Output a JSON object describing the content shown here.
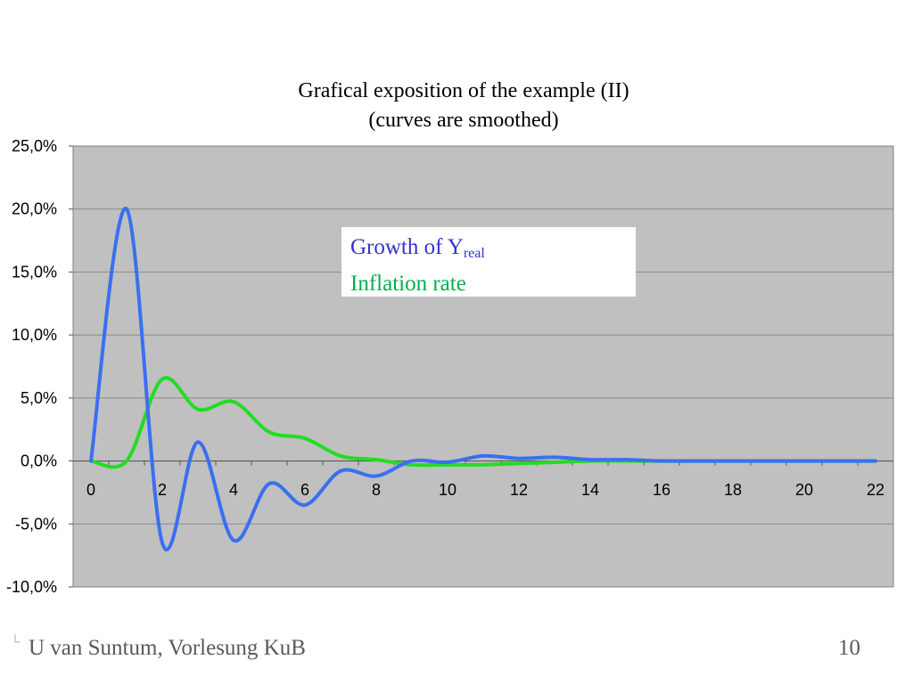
{
  "slide": {
    "footer_mark": "└",
    "footer": "U van Suntum, Vorlesung KuB",
    "page_number": "10"
  },
  "chart_data": {
    "type": "line",
    "title_line1": "Grafical exposition of the example (II)",
    "title_line2": "(curves are smoothed)",
    "xlabel": "",
    "ylabel": "",
    "xlim": [
      0,
      22
    ],
    "ylim": [
      -10,
      25
    ],
    "x_ticks": [
      "0",
      "2",
      "4",
      "6",
      "8",
      "10",
      "12",
      "14",
      "16",
      "18",
      "20",
      "22"
    ],
    "y_ticks": [
      "25,0%",
      "20,0%",
      "15,0%",
      "10,0%",
      "5,0%",
      "0,0%",
      "-5,0%",
      "-10,0%"
    ],
    "grid": "horizontal",
    "plot_background": "#c0c0c0",
    "legend": {
      "position": "top-center",
      "growth_label": "Growth of Y",
      "growth_subscript": "real",
      "inflation_label": "Inflation rate"
    },
    "series": [
      {
        "name": "Growth of Yreal",
        "color": "#3a6ff0",
        "x": [
          0,
          1,
          2,
          3,
          4,
          5,
          6,
          7,
          8,
          9,
          10,
          11,
          12,
          13,
          14,
          15,
          16,
          17,
          18,
          19,
          20,
          21,
          22
        ],
        "values": [
          0,
          20,
          -6.5,
          1.5,
          -6.3,
          -1.8,
          -3.5,
          -0.8,
          -1.2,
          0,
          -0.1,
          0.4,
          0.2,
          0.3,
          0.1,
          0.1,
          0,
          0,
          0,
          0,
          0,
          0,
          0
        ]
      },
      {
        "name": "Inflation rate",
        "color": "#22dd22",
        "x": [
          0,
          1,
          2,
          3,
          4,
          5,
          6,
          7,
          8,
          9,
          10,
          11,
          12,
          13,
          14,
          15,
          16,
          17,
          18,
          19,
          20,
          21,
          22
        ],
        "values": [
          0,
          0,
          6.5,
          4.1,
          4.7,
          2.3,
          1.8,
          0.4,
          0.1,
          -0.3,
          -0.3,
          -0.3,
          -0.2,
          -0.1,
          0,
          0,
          0,
          0,
          0,
          0,
          0,
          0,
          0
        ]
      }
    ]
  }
}
